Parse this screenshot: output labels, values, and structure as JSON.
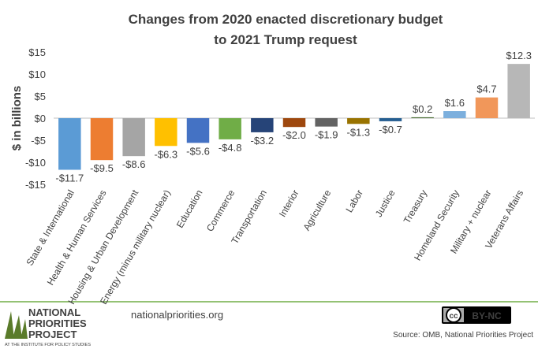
{
  "chart_data": {
    "type": "bar",
    "title": [
      "Changes from 2020 enacted discretionary  budget",
      "to 2021 Trump request"
    ],
    "y_label": "$ in billions",
    "categories": [
      "State & International",
      "Health & Human Services",
      "Housing & Urban Development",
      "Energy (minus military nuclear)",
      "Education",
      "Commerce",
      "Transportation",
      "Interior",
      "Agriculture",
      "Labor",
      "Justice",
      "Treasury",
      "Homeland Security",
      "Military + nuclear",
      "Veterans Affairs"
    ],
    "values": [
      -11.7,
      -9.5,
      -8.6,
      -6.3,
      -5.6,
      -4.8,
      -3.2,
      -2.0,
      -1.9,
      -1.3,
      -0.7,
      0.2,
      1.6,
      4.7,
      12.3
    ],
    "value_labels": [
      "-$11.7",
      "-$9.5",
      "-$8.6",
      "-$6.3",
      "-$5.6",
      "-$4.8",
      "-$3.2",
      "-$2.0",
      "-$1.9",
      "-$1.3",
      "-$0.7",
      "$0.2",
      "$1.6",
      "$4.7",
      "$12.3"
    ],
    "colors": [
      "#5b9bd5",
      "#ed7d31",
      "#a5a5a5",
      "#ffc000",
      "#4472c4",
      "#70ad47",
      "#264478",
      "#9e480e",
      "#636363",
      "#997300",
      "#255e91",
      "#43682b",
      "#7cafdd",
      "#f1975a",
      "#b7b7b7"
    ],
    "ylim": [
      -15,
      15
    ],
    "yticks": [
      {
        "value": 15,
        "label": "$15"
      },
      {
        "value": 10,
        "label": "$10"
      },
      {
        "value": 5,
        "label": "$5"
      },
      {
        "value": 0,
        "label": "$0"
      },
      {
        "value": -5,
        "label": "-$5"
      },
      {
        "value": -10,
        "label": "-$10"
      },
      {
        "value": -15,
        "label": "-$15"
      }
    ],
    "grid": false
  },
  "footer": {
    "logo_line1": "NATIONAL",
    "logo_line2": "PRIORITIES",
    "logo_line3": "PROJECT",
    "logo_sub": "AT THE INSTITUTE FOR POLICY STUDIES",
    "website": "nationalpriorities.org",
    "license_cc": "cc",
    "license": "BY-NC",
    "source": "Source: OMB, National Priorities Project"
  }
}
